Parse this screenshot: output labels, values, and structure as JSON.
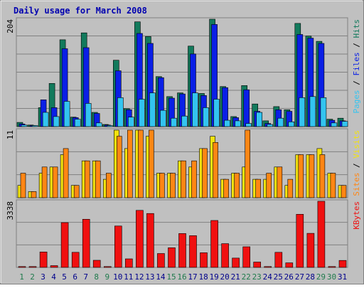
{
  "chart_data": [
    {
      "type": "bar",
      "title": "Daily usage for March 2008",
      "ylabel_parts": [
        "Pages",
        "Files",
        "Hits"
      ],
      "y_max_label": "204",
      "ylim": [
        0,
        204
      ],
      "categories": [
        "1",
        "2",
        "3",
        "4",
        "5",
        "6",
        "7",
        "8",
        "9",
        "10",
        "11",
        "12",
        "13",
        "14",
        "15",
        "16",
        "17",
        "18",
        "19",
        "20",
        "21",
        "22",
        "23",
        "24",
        "25",
        "26",
        "27",
        "28",
        "29",
        "30",
        "31"
      ],
      "series": [
        {
          "name": "Hits",
          "color": "#127a5c",
          "values": [
            8,
            3,
            36,
            82,
            165,
            18,
            178,
            27,
            4,
            126,
            34,
            199,
            171,
            95,
            57,
            64,
            153,
            63,
            204,
            76,
            19,
            78,
            43,
            11,
            38,
            32,
            196,
            172,
            162,
            14,
            16
          ]
        },
        {
          "name": "Files",
          "color": "#0a1fe6",
          "values": [
            5,
            2,
            51,
            36,
            148,
            17,
            150,
            25,
            3,
            106,
            32,
            177,
            158,
            93,
            54,
            62,
            138,
            59,
            194,
            74,
            17,
            70,
            29,
            6,
            32,
            29,
            175,
            168,
            158,
            12,
            11
          ]
        },
        {
          "name": "Pages",
          "color": "#33c4f0",
          "values": [
            3,
            1,
            27,
            19,
            48,
            14,
            44,
            7,
            1,
            55,
            18,
            52,
            64,
            31,
            16,
            20,
            64,
            36,
            52,
            12,
            11,
            6,
            27,
            4,
            16,
            9,
            55,
            57,
            55,
            7,
            10
          ]
        }
      ]
    },
    {
      "type": "bar",
      "ylabel_parts": [
        "Sites",
        "Visits"
      ],
      "y_max_label": "11",
      "ylim": [
        0,
        11
      ],
      "categories": [
        "1",
        "2",
        "3",
        "4",
        "5",
        "6",
        "7",
        "8",
        "9",
        "10",
        "11",
        "12",
        "13",
        "14",
        "15",
        "16",
        "17",
        "18",
        "19",
        "20",
        "21",
        "22",
        "23",
        "24",
        "25",
        "26",
        "27",
        "28",
        "29",
        "30",
        "31"
      ],
      "series": [
        {
          "name": "Visits",
          "color": "#f2e20f",
          "values": [
            2,
            1,
            4,
            5,
            7,
            2,
            6,
            6,
            3,
            11,
            8,
            11,
            10,
            4,
            4,
            6,
            5,
            8,
            10,
            3,
            4,
            5,
            3,
            3,
            5,
            2,
            7,
            7,
            8,
            4,
            2
          ]
        },
        {
          "name": "Sites",
          "color": "#ff8614",
          "values": [
            4,
            1,
            5,
            5,
            8,
            2,
            6,
            6,
            4,
            10,
            11,
            11,
            11,
            4,
            4,
            6,
            6,
            8,
            9,
            3,
            4,
            11,
            3,
            4,
            5,
            3,
            7,
            7,
            7,
            4,
            2
          ]
        }
      ]
    },
    {
      "type": "bar",
      "ylabel_parts": [
        "KBytes"
      ],
      "y_max_label": "3338",
      "ylim": [
        0,
        3338
      ],
      "categories": [
        "1",
        "2",
        "3",
        "4",
        "5",
        "6",
        "7",
        "8",
        "9",
        "10",
        "11",
        "12",
        "13",
        "14",
        "15",
        "16",
        "17",
        "18",
        "19",
        "20",
        "21",
        "22",
        "23",
        "24",
        "25",
        "26",
        "27",
        "28",
        "29",
        "30",
        "31"
      ],
      "series": [
        {
          "name": "KBytes",
          "color": "#f01010",
          "values": [
            0,
            0,
            780,
            90,
            2260,
            760,
            2430,
            360,
            10,
            2090,
            430,
            2880,
            2720,
            700,
            990,
            1710,
            1600,
            740,
            2370,
            1200,
            470,
            1040,
            270,
            20,
            760,
            230,
            2680,
            1720,
            3338,
            20,
            350
          ]
        }
      ]
    }
  ],
  "x_day_colors": {
    "weekday": "#00008b",
    "weekend": "#1f7a4c"
  },
  "weekend_days": [
    1,
    2,
    8,
    9,
    15,
    16,
    22,
    23,
    29,
    30
  ]
}
